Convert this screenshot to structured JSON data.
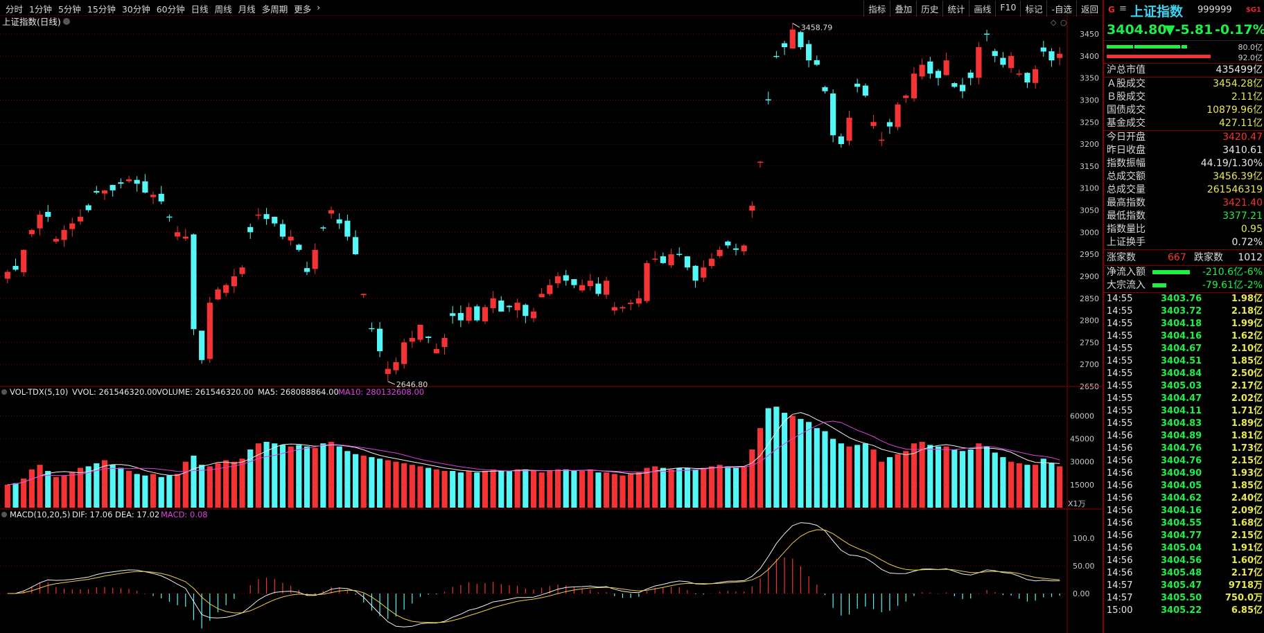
{
  "toolbar": {
    "periods": [
      "分时",
      "1分钟",
      "5分钟",
      "15分钟",
      "30分钟",
      "60分钟",
      "日线",
      "周线",
      "月线",
      "多周期",
      "更多"
    ],
    "tools": [
      "指标",
      "叠加",
      "历史",
      "统计",
      "画线",
      "F10",
      "标记",
      "-自选",
      "返回"
    ]
  },
  "chart": {
    "title": "上证指数(日线)",
    "hi_label": "3458.79",
    "lo_label": "2646.80",
    "price_axis": [
      "3450",
      "3400",
      "3350",
      "3300",
      "3250",
      "3200",
      "3150",
      "3100",
      "3050",
      "3000",
      "2950",
      "2900",
      "2850",
      "2800",
      "2750",
      "2700",
      "2650"
    ],
    "vol_header": {
      "name": "VOL-TDX(5,10)",
      "vvol": "VVOL: 261546320.00",
      "volume": "VOLUME: 261546320.00",
      "ma5": "MA5: 268088864.00",
      "ma10": "MA10: 280132608.00"
    },
    "vol_axis": [
      "60000",
      "45000",
      "30000",
      "15000"
    ],
    "vol_unit": "X1万",
    "macd_header": {
      "name": "MACD(10,20,5)",
      "dif": "DIF: 17.06",
      "dea": "DEA: 17.02",
      "macd": "MACD: 0.08"
    },
    "macd_axis": [
      "100.0",
      "50.00",
      "0.00"
    ],
    "colors": {
      "up": "#f43434",
      "down": "#54f6f6",
      "grid": "#7a0000",
      "ma5": "#f0f0f0",
      "ma10": "#f0d040",
      "magenta": "#e040e0"
    }
  },
  "chart_data": {
    "type": "candlestick",
    "closes": [
      2910,
      2915,
      2960,
      3005,
      3040,
      3035,
      2985,
      3005,
      3020,
      3035,
      3050,
      3090,
      3095,
      3095,
      3110,
      3120,
      3110,
      3090,
      3085,
      3070,
      3035,
      3000,
      2990,
      2780,
      2710,
      2840,
      2870,
      2880,
      2900,
      2920,
      3000,
      3040,
      3030,
      3020,
      2990,
      2990,
      2960,
      2910,
      2960,
      3010,
      3050,
      3020,
      2990,
      2950,
      2860,
      2780,
      2730,
      2690,
      2705,
      2750,
      2760,
      2790,
      2760,
      2735,
      2760,
      2810,
      2800,
      2830,
      2800,
      2830,
      2850,
      2820,
      2830,
      2840,
      2810,
      2820,
      2860,
      2880,
      2900,
      2890,
      2880,
      2880,
      2890,
      2860,
      2890,
      2830,
      2830,
      2840,
      2850,
      2930,
      2940,
      2930,
      2950,
      2950,
      2920,
      2890,
      2920,
      2940,
      2960,
      2970,
      2960,
      2970,
      3060,
      3160,
      3300,
      3400,
      3420,
      3460,
      3420,
      3390,
      3380,
      3320,
      3220,
      3200,
      3260,
      3330,
      3310,
      3250,
      3210,
      3240,
      3290,
      3310,
      3360,
      3380,
      3360,
      3350,
      3390,
      3330,
      3320,
      3350,
      3420,
      3450,
      3400,
      3380,
      3400,
      3360,
      3340,
      3370,
      3410,
      3390,
      3405
    ],
    "volumes": [
      15000,
      16000,
      19000,
      25000,
      28000,
      24000,
      20000,
      21000,
      23000,
      26000,
      27000,
      29000,
      31000,
      28000,
      26000,
      24000,
      22000,
      21000,
      22000,
      20000,
      21000,
      22000,
      30000,
      34000,
      28000,
      27000,
      29000,
      31000,
      30000,
      32000,
      38000,
      42000,
      43000,
      42000,
      41000,
      40000,
      41000,
      40000,
      39000,
      42000,
      43000,
      40000,
      37000,
      35000,
      34000,
      33000,
      32000,
      31000,
      30000,
      29000,
      28000,
      27000,
      26000,
      25000,
      24000,
      24000,
      23000,
      24000,
      23000,
      24000,
      25000,
      24000,
      24000,
      25000,
      25000,
      24000,
      23000,
      24000,
      25000,
      25000,
      24000,
      24000,
      25000,
      23000,
      23000,
      22000,
      21000,
      22000,
      23000,
      26000,
      27000,
      26000,
      25000,
      26000,
      26000,
      25000,
      26000,
      27000,
      28000,
      27000,
      26000,
      27000,
      38000,
      52000,
      65000,
      66000,
      62000,
      60000,
      58000,
      56000,
      52000,
      50000,
      45000,
      42000,
      40000,
      41000,
      42000,
      38000,
      30000,
      33000,
      35000,
      37000,
      42000,
      43000,
      41000,
      40000,
      40000,
      38000,
      37000,
      38000,
      42000,
      40000,
      36000,
      33000,
      30000,
      29000,
      28000,
      28000,
      32000,
      29000,
      27000
    ],
    "xlabel": "",
    "ylabel": ""
  },
  "quote": {
    "g": "G",
    "menu_icon": "≡",
    "name": "上证指数",
    "code": "999999",
    "sg": "$G1",
    "price": "3404.80",
    "change": "▼-5.81",
    "pct": "-0.17%",
    "bar1": "80.0亿",
    "bar2": "92.0亿",
    "stats": [
      {
        "label": "沪总市值",
        "value": "435499亿",
        "color": "#e8e8e8"
      },
      {
        "label": "Ａ股成交",
        "value": "3454.28亿",
        "color": "#e8e850"
      },
      {
        "label": "Ｂ股成交",
        "value": "2.11亿",
        "color": "#e8e850"
      },
      {
        "label": "国债成交",
        "value": "10879.96亿",
        "color": "#e8e850"
      },
      {
        "label": "基金成交",
        "value": "427.11亿",
        "color": "#e8e850"
      },
      {
        "label": "今日开盘",
        "value": "3420.47",
        "color": "#f43434"
      },
      {
        "label": "昨日收盘",
        "value": "3410.61",
        "color": "#e8e8e8"
      },
      {
        "label": "指数振幅",
        "value": "44.19/1.30%",
        "color": "#e8e8e8"
      },
      {
        "label": "总成交额",
        "value": "3456.39亿",
        "color": "#e8e850"
      },
      {
        "label": "总成交量",
        "value": "261546319",
        "color": "#e8e850"
      },
      {
        "label": "最高指数",
        "value": "3421.40",
        "color": "#f43434"
      },
      {
        "label": "最低指数",
        "value": "3377.21",
        "color": "#1cf048"
      },
      {
        "label": "指数量比",
        "value": "0.95",
        "color": "#e8e850"
      },
      {
        "label": "上证换手",
        "value": "0.72%",
        "color": "#e8e8e8"
      }
    ],
    "up_label": "涨家数",
    "up_count": "667",
    "down_label": "跌家数",
    "down_count": "1012",
    "flow": [
      {
        "label": "净流入额",
        "value": "-210.6亿",
        "pct": "-6%"
      },
      {
        "label": "大宗流入",
        "value": "-79.61亿",
        "pct": "-2%"
      }
    ],
    "ticks": [
      {
        "t": "14:55",
        "p": "3403.76",
        "v": "1.98亿"
      },
      {
        "t": "14:55",
        "p": "3403.72",
        "v": "2.18亿"
      },
      {
        "t": "14:55",
        "p": "3404.18",
        "v": "1.99亿"
      },
      {
        "t": "14:55",
        "p": "3404.16",
        "v": "1.62亿"
      },
      {
        "t": "14:55",
        "p": "3404.67",
        "v": "2.10亿"
      },
      {
        "t": "14:55",
        "p": "3404.51",
        "v": "1.85亿"
      },
      {
        "t": "14:55",
        "p": "3404.84",
        "v": "2.50亿"
      },
      {
        "t": "14:55",
        "p": "3405.03",
        "v": "2.17亿"
      },
      {
        "t": "14:55",
        "p": "3404.47",
        "v": "2.02亿"
      },
      {
        "t": "14:55",
        "p": "3404.11",
        "v": "1.71亿"
      },
      {
        "t": "14:55",
        "p": "3404.83",
        "v": "1.89亿"
      },
      {
        "t": "14:56",
        "p": "3404.89",
        "v": "1.81亿"
      },
      {
        "t": "14:56",
        "p": "3404.76",
        "v": "1.73亿"
      },
      {
        "t": "14:56",
        "p": "3404.76",
        "v": "2.15亿"
      },
      {
        "t": "14:56",
        "p": "3404.90",
        "v": "1.93亿"
      },
      {
        "t": "14:56",
        "p": "3404.05",
        "v": "1.85亿"
      },
      {
        "t": "14:56",
        "p": "3404.62",
        "v": "2.40亿"
      },
      {
        "t": "14:56",
        "p": "3404.16",
        "v": "2.09亿"
      },
      {
        "t": "14:56",
        "p": "3404.55",
        "v": "1.68亿"
      },
      {
        "t": "14:56",
        "p": "3404.77",
        "v": "2.15亿"
      },
      {
        "t": "14:56",
        "p": "3405.04",
        "v": "1.91亿"
      },
      {
        "t": "14:56",
        "p": "3404.56",
        "v": "1.60亿"
      },
      {
        "t": "14:56",
        "p": "3405.48",
        "v": "2.17亿"
      },
      {
        "t": "14:57",
        "p": "3405.47",
        "v": "9718万"
      },
      {
        "t": "14:57",
        "p": "3405.50",
        "v": "750.0万"
      },
      {
        "t": "15:00",
        "p": "3405.22",
        "v": "6.85亿"
      }
    ]
  }
}
